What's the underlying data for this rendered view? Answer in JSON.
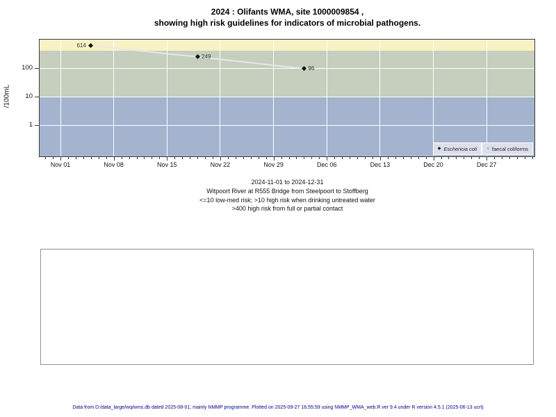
{
  "figure": {
    "title_line1": "2024 : Olifants WMA, site 1000009854 ,",
    "title_line2": "showing high risk guidelines for indicators of microbial pathogens."
  },
  "y_axis": {
    "label": "/100mL",
    "ticks": [
      {
        "value": 100,
        "label": "100"
      },
      {
        "value": 10,
        "label": "10"
      },
      {
        "value": 1,
        "label": "1"
      }
    ]
  },
  "x_axis": {
    "major_ticks": [
      {
        "date": "2024-11-01",
        "label": "Nov 01"
      },
      {
        "date": "2024-11-08",
        "label": "Nov 08"
      },
      {
        "date": "2024-11-15",
        "label": "Nov 15"
      },
      {
        "date": "2024-11-22",
        "label": "Nov 22"
      },
      {
        "date": "2024-11-29",
        "label": "Nov 29"
      },
      {
        "date": "2024-12-06",
        "label": "Dec 06"
      },
      {
        "date": "2024-12-13",
        "label": "Dec 13"
      },
      {
        "date": "2024-12-20",
        "label": "Dec 20"
      },
      {
        "date": "2024-12-27",
        "label": "Dec 27"
      }
    ],
    "minor_ticks": {
      "start": "2024-10-30",
      "end": "2025-01-02",
      "interval_days": 1
    }
  },
  "chart_data": {
    "type": "scatter",
    "x_start": "2024-11-01",
    "xlim": [
      "2024-11-01",
      "2024-12-31"
    ],
    "y_scale": "log10",
    "ylim": [
      0.075,
      1000
    ],
    "series": [
      {
        "name": "Eschericia coli",
        "marker": "filled-diamond",
        "points": [
          {
            "date": "2024-11-05",
            "value": 614,
            "label": "614",
            "label_side": "left"
          },
          {
            "date": "2024-11-19",
            "value": 249,
            "label": "249",
            "label_side": "right"
          },
          {
            "date": "2024-12-03",
            "value": 96,
            "label": "96",
            "label_side": "right"
          }
        ]
      },
      {
        "name": "faecal coliforms",
        "marker": "open-circle",
        "points": []
      }
    ],
    "risk_bands": [
      {
        "min": 400,
        "max": 1000,
        "color": "#F6F2C5",
        "meaning": ">400 high risk from full or partial contact"
      },
      {
        "min": 10,
        "max": 400,
        "color": "#C6CEBD",
        "meaning": ">10 high risk when drinking untreated water"
      },
      {
        "min": 0.075,
        "max": 10,
        "color": "#A4B4CF",
        "meaning": "<=10 low-med risk"
      }
    ],
    "grid": {
      "h_values": [
        100,
        10,
        1
      ],
      "v_dates": [
        "2024-11-01",
        "2024-11-08",
        "2024-11-15",
        "2024-11-22",
        "2024-11-29",
        "2024-12-06",
        "2024-12-13",
        "2024-12-20",
        "2024-12-27"
      ]
    },
    "line_color": "#E8E8E8",
    "marker_color": "#111111"
  },
  "legend": {
    "entries": [
      {
        "label": "Eschericia coli",
        "marker": "filled-diamond",
        "italic": true
      },
      {
        "label": "faecal coliforms",
        "marker": "open-circle",
        "italic": false
      }
    ]
  },
  "caption": {
    "lines": [
      "2024-11-01 to 2024-12-31",
      "Witpoort River at R555 Bridge from Steelpoort to Stoffberg",
      "<=10 low-med risk; >10 high risk when drinking untreated water",
      ">400 high risk from full or partial contact"
    ]
  },
  "footer": {
    "text": "Data from D:/data_large/wq/wms.db dated 2025-08-01, mainly NMMP programme. Plotted on 2025-09-27 16:55:59 using NMMP_WMA_web.R ver 9.4 under R version 4.5.1 (2025-06-13 ucrt)"
  },
  "colors": {
    "legend_bg": "#DCE0E9",
    "grid": "#FFFFFF",
    "plot_border": "#3A3A3A",
    "footer_text": "#00008B"
  }
}
